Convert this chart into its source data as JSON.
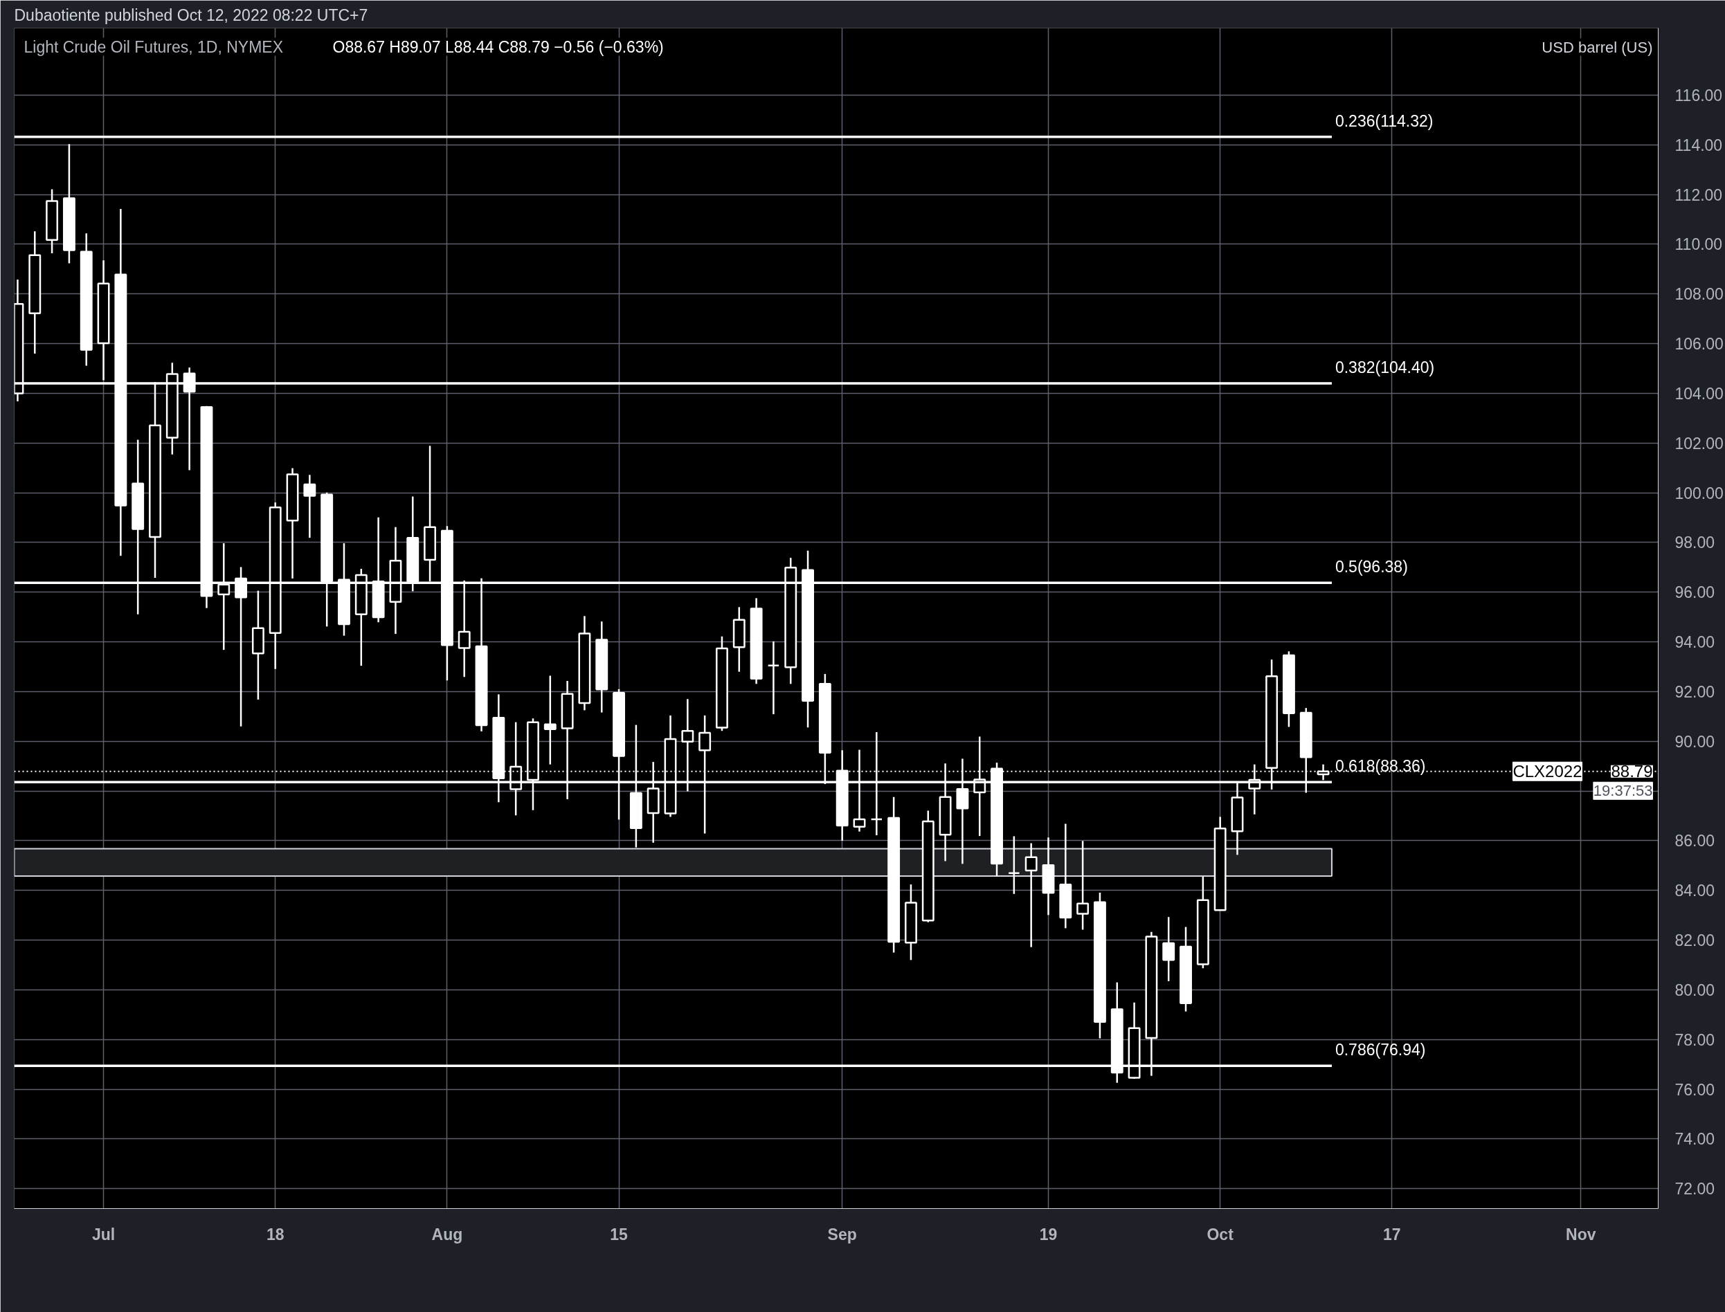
{
  "chart_data": {
    "type": "candlestick",
    "title": "Light Crude Oil Futures, 1D, NYMEX",
    "subtitle": "O88.67  H89.07  L88.44  C88.79  −0.56 (−0.63%)",
    "ylabel": "USD barrel (US)",
    "annotations": [
      "Dubaotiente published Oct 12, 2022 08:22 UTC+7",
      "88.79",
      "19:37:53"
    ],
    "color": "#ffffff",
    "categories": [
      null,
      null,
      null,
      null,
      null,
      "Jul",
      null,
      null,
      null,
      null,
      null,
      null,
      null,
      null,
      null,
      "18",
      null,
      null,
      null,
      null,
      null,
      null,
      null,
      null,
      null,
      "Aug",
      null,
      null,
      null,
      null,
      null,
      null,
      null,
      null,
      null,
      "15",
      null,
      null,
      null,
      null,
      null,
      null,
      null,
      null,
      null,
      null,
      null,
      null,
      "Sep",
      null,
      null,
      null,
      null,
      null,
      null,
      null,
      null,
      null,
      null,
      null,
      "19",
      null,
      null,
      null,
      null,
      null,
      null,
      null,
      null,
      null,
      "Oct",
      null,
      null,
      null,
      null,
      null,
      null,
      null,
      null,
      null,
      "17",
      null,
      null,
      null,
      null,
      null,
      null,
      null,
      null,
      null,
      null,
      "Nov",
      null,
      null,
      null,
      null
    ],
    "ohlc": [
      [
        104.0,
        108.58,
        103.68,
        107.6
      ],
      [
        107.22,
        110.52,
        105.6,
        109.56
      ],
      [
        110.17,
        112.21,
        109.64,
        111.74
      ],
      [
        111.85,
        114.03,
        109.23,
        109.76
      ],
      [
        109.7,
        110.44,
        105.11,
        105.75
      ],
      [
        106.02,
        109.35,
        104.53,
        108.42
      ],
      [
        108.78,
        111.42,
        97.46,
        99.49
      ],
      [
        100.37,
        102.13,
        95.11,
        98.54
      ],
      [
        98.22,
        104.45,
        96.58,
        102.71
      ],
      [
        102.22,
        105.23,
        101.54,
        104.78
      ],
      [
        104.8,
        105.04,
        100.91,
        104.07
      ],
      [
        103.45,
        103.49,
        95.36,
        95.85
      ],
      [
        95.91,
        97.97,
        93.68,
        96.31
      ],
      [
        96.55,
        97.01,
        90.6,
        95.79
      ],
      [
        93.54,
        96.06,
        91.68,
        94.55
      ],
      [
        94.36,
        99.61,
        92.91,
        99.41
      ],
      [
        98.88,
        100.99,
        96.55,
        100.74
      ],
      [
        100.34,
        100.72,
        98.19,
        99.88
      ],
      [
        99.93,
        100.01,
        94.62,
        96.44
      ],
      [
        96.5,
        97.97,
        94.25,
        94.71
      ],
      [
        95.11,
        96.94,
        93.04,
        96.69
      ],
      [
        96.43,
        99.01,
        94.79,
        94.99
      ],
      [
        95.61,
        98.62,
        94.32,
        97.27
      ],
      [
        98.19,
        99.85,
        96.04,
        96.43
      ],
      [
        97.3,
        101.89,
        96.43,
        98.62
      ],
      [
        98.47,
        98.66,
        92.45,
        93.87
      ],
      [
        93.75,
        96.47,
        92.59,
        94.41
      ],
      [
        93.82,
        96.56,
        90.4,
        90.65
      ],
      [
        90.95,
        91.89,
        87.55,
        88.51
      ],
      [
        88.07,
        90.77,
        87.02,
        88.98
      ],
      [
        88.45,
        90.92,
        87.23,
        90.77
      ],
      [
        90.68,
        92.64,
        89.07,
        90.49
      ],
      [
        90.52,
        92.43,
        87.67,
        91.91
      ],
      [
        91.54,
        95.04,
        91.25,
        94.34
      ],
      [
        94.09,
        94.82,
        91.16,
        92.09
      ],
      [
        91.95,
        92.1,
        86.85,
        89.41
      ],
      [
        87.92,
        90.66,
        85.73,
        86.51
      ],
      [
        87.11,
        89.17,
        85.92,
        88.1
      ],
      [
        87.1,
        91.04,
        86.96,
        90.09
      ],
      [
        89.99,
        91.7,
        87.99,
        90.42
      ],
      [
        89.64,
        91.04,
        86.29,
        90.34
      ],
      [
        90.55,
        94.22,
        90.42,
        93.74
      ],
      [
        93.79,
        95.4,
        92.8,
        94.89
      ],
      [
        95.34,
        95.76,
        92.31,
        92.52
      ],
      [
        93.05,
        94.02,
        91.09,
        93.05
      ],
      [
        92.98,
        97.38,
        92.31,
        96.99
      ],
      [
        96.89,
        97.67,
        90.56,
        91.63
      ],
      [
        92.31,
        92.71,
        88.28,
        89.54
      ],
      [
        88.82,
        89.64,
        86.0,
        86.61
      ],
      [
        86.56,
        89.66,
        86.37,
        86.86
      ],
      [
        86.86,
        90.37,
        86.22,
        86.86
      ],
      [
        86.92,
        87.76,
        81.5,
        81.93
      ],
      [
        81.9,
        84.24,
        81.2,
        83.51
      ],
      [
        82.79,
        87.21,
        82.72,
        86.78
      ],
      [
        86.24,
        89.11,
        85.18,
        87.76
      ],
      [
        88.08,
        89.3,
        85.07,
        87.3
      ],
      [
        87.95,
        90.19,
        86.19,
        88.46
      ],
      [
        88.9,
        89.14,
        84.56,
        85.08
      ],
      [
        84.7,
        86.18,
        83.86,
        84.7
      ],
      [
        84.8,
        85.9,
        81.72,
        85.34
      ],
      [
        85.02,
        86.13,
        83.01,
        83.9
      ],
      [
        84.24,
        86.68,
        82.48,
        82.91
      ],
      [
        83.06,
        85.99,
        82.42,
        83.47
      ],
      [
        83.53,
        83.91,
        78.05,
        78.71
      ],
      [
        79.22,
        80.3,
        76.26,
        76.67
      ],
      [
        76.46,
        79.49,
        76.42,
        78.46
      ],
      [
        78.06,
        82.33,
        76.54,
        82.14
      ],
      [
        81.88,
        82.93,
        80.35,
        81.2
      ],
      [
        81.74,
        82.53,
        79.13,
        79.46
      ],
      [
        81.03,
        84.55,
        80.87,
        83.61
      ],
      [
        83.21,
        86.96,
        83.21,
        86.49
      ],
      [
        86.38,
        88.33,
        85.43,
        87.74
      ],
      [
        88.1,
        89.07,
        87.06,
        88.45
      ],
      [
        88.93,
        93.29,
        88.06,
        92.62
      ],
      [
        93.46,
        93.62,
        90.58,
        91.13
      ],
      [
        91.15,
        91.34,
        87.93,
        89.36
      ],
      [
        88.67,
        89.07,
        88.44,
        88.79
      ],
      null,
      null,
      null,
      null,
      null,
      null,
      null,
      null,
      null,
      null,
      null,
      null,
      null,
      null,
      null,
      null,
      null,
      null,
      null
    ],
    "ylim": [
      71.2,
      118.7
    ],
    "yticks": [
      {
        "value": 72,
        "label": "72.00"
      },
      {
        "value": 74,
        "label": "74.00"
      },
      {
        "value": 76,
        "label": "76.00"
      },
      {
        "value": 78,
        "label": "78.00"
      },
      {
        "value": 80,
        "label": "80.00"
      },
      {
        "value": 82,
        "label": "82.00"
      },
      {
        "value": 84,
        "label": "84.00"
      },
      {
        "value": 86,
        "label": "86.00"
      },
      {
        "value": 88,
        "label": null
      },
      {
        "value": 90,
        "label": "90.00"
      },
      {
        "value": 92,
        "label": "92.00"
      },
      {
        "value": 94,
        "label": "94.00"
      },
      {
        "value": 96,
        "label": "96.00"
      },
      {
        "value": 98,
        "label": "98.00"
      },
      {
        "value": 100,
        "label": "100.00"
      },
      {
        "value": 102,
        "label": "102.00"
      },
      {
        "value": 104,
        "label": "104.00"
      },
      {
        "value": 106,
        "label": "106.00"
      },
      {
        "value": 108,
        "label": "108.00"
      },
      {
        "value": 110,
        "label": "110.00"
      },
      {
        "value": 112,
        "label": "112.00"
      },
      {
        "value": 114,
        "label": "114.00"
      },
      {
        "value": 116,
        "label": "116.00"
      }
    ],
    "ref_lines": [
      {
        "axis": "y",
        "value": 114.32,
        "label": "0.236(114.32)",
        "color": "#ffffff"
      },
      {
        "axis": "y",
        "value": 104.4,
        "label": "0.382(104.40)",
        "color": "#ffffff"
      },
      {
        "axis": "y",
        "value": 96.38,
        "label": "0.5(96.38)",
        "color": "#ffffff"
      },
      {
        "axis": "y",
        "value": 88.36,
        "label": "0.618(88.36)",
        "color": "#ffffff"
      },
      {
        "axis": "y",
        "value": 76.94,
        "label": "0.786(76.94)",
        "color": "#ffffff"
      },
      {
        "axis": "y",
        "value": 88.79,
        "label": "CLX2022",
        "color": "#ffffff",
        "line_style": "dotted"
      }
    ],
    "bands": [
      {
        "axis": "y",
        "from": 84.58,
        "to": 85.68,
        "color": "#1f2023"
      }
    ],
    "grid": true
  }
}
